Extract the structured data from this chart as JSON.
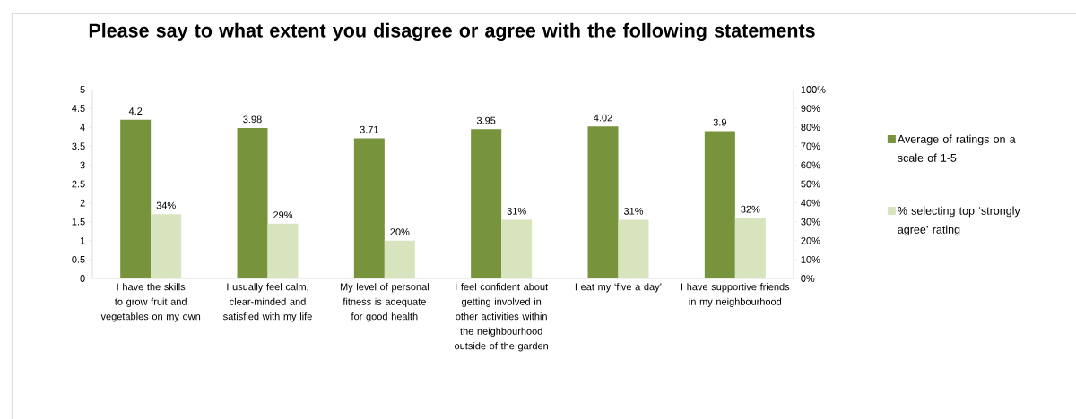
{
  "chart_data": {
    "type": "bar",
    "title": "Please say to what extent you disagree or agree with the following statements",
    "categories": [
      "I have the skills to grow fruit and vegetables on my own",
      "I usually feel calm, clear-minded and satisfied with my life",
      "My level of personal fitness is adequate for good health",
      "I feel confident about getting involved in other activities within the neighbourhood outside of the garden",
      "I eat my ‘five a day’",
      "I have supportive friends in my neighbourhood"
    ],
    "series": [
      {
        "name": "Average of ratings on a scale of 1-5",
        "color": "#77933c",
        "values": [
          4.2,
          3.98,
          3.71,
          3.95,
          4.02,
          3.9
        ]
      },
      {
        "name": "% selecting top ‘strongly agree’ rating",
        "color": "#d7e4bd",
        "axis": "y2",
        "values": [
          34,
          29,
          20,
          31,
          31,
          32
        ],
        "value_labels": [
          "34%",
          "29%",
          "20%",
          "31%",
          "31%",
          "32%"
        ]
      }
    ],
    "data_labels": true,
    "ylim": [
      0,
      5
    ],
    "yticks": [
      0,
      0.5,
      1,
      1.5,
      2,
      2.5,
      3,
      3.5,
      4,
      4.5,
      5
    ],
    "y2lim": [
      0,
      100
    ],
    "y2ticks": [
      {
        "value": 0,
        "label": "0%"
      },
      {
        "value": 10,
        "label": "10%"
      },
      {
        "value": 20,
        "label": "20%"
      },
      {
        "value": 30,
        "label": "30%"
      },
      {
        "value": 40,
        "label": "40%"
      },
      {
        "value": 50,
        "label": "50%"
      },
      {
        "value": 60,
        "label": "60%"
      },
      {
        "value": 70,
        "label": "70%"
      },
      {
        "value": 80,
        "label": "80%"
      },
      {
        "value": 90,
        "label": "90%"
      },
      {
        "value": 100,
        "label": "100%"
      }
    ],
    "grid": false,
    "legend": "right"
  }
}
